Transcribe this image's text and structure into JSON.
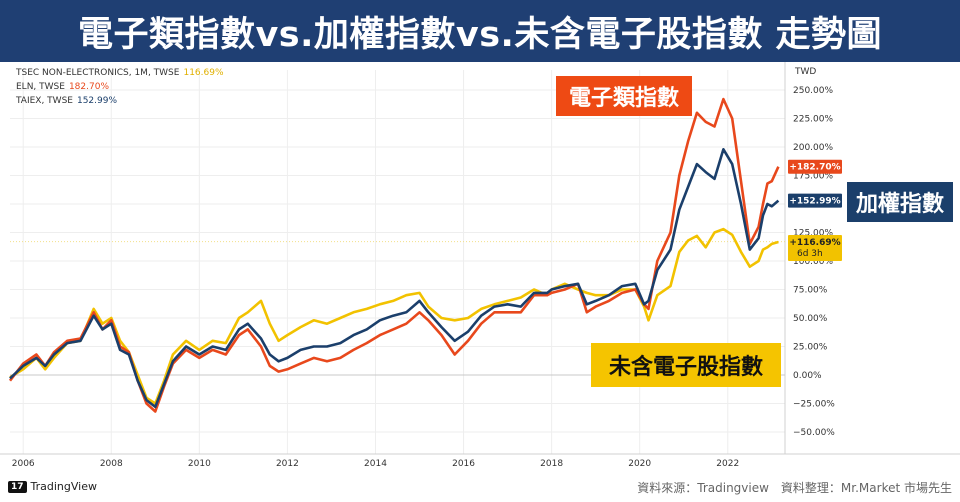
{
  "title": "電子類指數vs.加權指數vs.未含電子股指數 走勢圖",
  "legend": [
    {
      "name": "TSEC NON-ELECTRONICS, 1M, TWSE",
      "value": "116.69%",
      "color": "#f2c200"
    },
    {
      "name": "ELN, TWSE",
      "value": "182.70%",
      "color": "#e8481c"
    },
    {
      "name": "TAIEX, TWSE",
      "value": "152.99%",
      "color": "#1b3f6b"
    }
  ],
  "callouts": {
    "electronics": {
      "text": "電子類指數",
      "color": "#ee4a14"
    },
    "taiex": {
      "text": "加權指數",
      "color": "#1b3f6b"
    },
    "non_electronics": {
      "text": "未含電子股指數",
      "color": "#f5c400"
    }
  },
  "price_tags": {
    "electronics": "+182.70%",
    "taiex": "+152.99%",
    "non_electronics": "+116.69%",
    "non_electronics_sub": "6d 3h"
  },
  "footer": {
    "logo_mark": "17",
    "logo_text": "TradingView",
    "source": "資料來源：Tradingview　資料整理：Mr.Market 市場先生"
  },
  "chart_data": {
    "type": "line",
    "currency": "TWD",
    "x_ticks": [
      "2006",
      "2008",
      "2010",
      "2012",
      "2014",
      "2016",
      "2018",
      "2020",
      "2022"
    ],
    "x_tick_values": [
      2006,
      2008,
      2010,
      2012,
      2014,
      2016,
      2018,
      2020,
      2022
    ],
    "xlim": [
      2005.7,
      2023.3
    ],
    "y_ticks": [
      "250.00%",
      "225.00%",
      "200.00%",
      "175.00%",
      "150.00%",
      "125.00%",
      "100.00%",
      "75.00%",
      "50.00%",
      "25.00%",
      "0.00%",
      "−25.00%",
      "−50.00%"
    ],
    "y_tick_values": [
      250,
      225,
      200,
      175,
      150,
      125,
      100,
      75,
      50,
      25,
      0,
      -25,
      -50
    ],
    "ylim": [
      -55,
      265
    ],
    "series": [
      {
        "name": "ELN",
        "color": "#e8481c",
        "x": [
          2005.7,
          2006.0,
          2006.3,
          2006.5,
          2006.7,
          2007.0,
          2007.3,
          2007.6,
          2007.8,
          2008.0,
          2008.2,
          2008.4,
          2008.6,
          2008.8,
          2009.0,
          2009.2,
          2009.4,
          2009.7,
          2010.0,
          2010.3,
          2010.6,
          2010.9,
          2011.1,
          2011.4,
          2011.6,
          2011.8,
          2012.0,
          2012.3,
          2012.6,
          2012.9,
          2013.2,
          2013.5,
          2013.8,
          2014.1,
          2014.4,
          2014.7,
          2015.0,
          2015.2,
          2015.5,
          2015.8,
          2016.1,
          2016.4,
          2016.7,
          2017.0,
          2017.3,
          2017.6,
          2017.9,
          2018.0,
          2018.3,
          2018.6,
          2018.8,
          2019.0,
          2019.3,
          2019.6,
          2019.9,
          2020.1,
          2020.2,
          2020.4,
          2020.7,
          2020.9,
          2021.1,
          2021.3,
          2021.5,
          2021.7,
          2021.9,
          2022.1,
          2022.3,
          2022.5,
          2022.7,
          2022.8,
          2022.9,
          2023.0,
          2023.15
        ],
        "values": [
          -5,
          10,
          18,
          8,
          20,
          30,
          32,
          55,
          40,
          48,
          25,
          20,
          -5,
          -25,
          -32,
          -10,
          10,
          22,
          15,
          22,
          18,
          35,
          40,
          25,
          8,
          3,
          5,
          10,
          15,
          12,
          15,
          22,
          28,
          35,
          40,
          45,
          55,
          48,
          35,
          18,
          30,
          45,
          55,
          55,
          55,
          70,
          70,
          72,
          75,
          80,
          55,
          60,
          65,
          72,
          75,
          62,
          58,
          100,
          125,
          175,
          205,
          230,
          222,
          218,
          242,
          225,
          170,
          115,
          130,
          150,
          168,
          170,
          182.7
        ]
      },
      {
        "name": "TAIEX",
        "color": "#1b3f6b",
        "x": [
          2005.7,
          2006.0,
          2006.3,
          2006.5,
          2006.7,
          2007.0,
          2007.3,
          2007.6,
          2007.8,
          2008.0,
          2008.2,
          2008.4,
          2008.6,
          2008.8,
          2009.0,
          2009.2,
          2009.4,
          2009.7,
          2010.0,
          2010.3,
          2010.6,
          2010.9,
          2011.1,
          2011.4,
          2011.6,
          2011.8,
          2012.0,
          2012.3,
          2012.6,
          2012.9,
          2013.2,
          2013.5,
          2013.8,
          2014.1,
          2014.4,
          2014.7,
          2015.0,
          2015.2,
          2015.5,
          2015.8,
          2016.1,
          2016.4,
          2016.7,
          2017.0,
          2017.3,
          2017.6,
          2017.9,
          2018.0,
          2018.3,
          2018.6,
          2018.8,
          2019.0,
          2019.3,
          2019.6,
          2019.9,
          2020.1,
          2020.2,
          2020.4,
          2020.7,
          2020.9,
          2021.1,
          2021.3,
          2021.5,
          2021.7,
          2021.9,
          2022.1,
          2022.3,
          2022.5,
          2022.7,
          2022.8,
          2022.9,
          2023.0,
          2023.15
        ],
        "values": [
          -3,
          8,
          15,
          8,
          18,
          28,
          30,
          52,
          40,
          45,
          22,
          18,
          -5,
          -22,
          -28,
          -8,
          12,
          25,
          18,
          25,
          22,
          40,
          45,
          32,
          18,
          12,
          15,
          22,
          25,
          25,
          28,
          35,
          40,
          48,
          52,
          55,
          65,
          55,
          42,
          30,
          38,
          52,
          60,
          62,
          60,
          72,
          72,
          75,
          78,
          80,
          62,
          65,
          70,
          78,
          80,
          62,
          65,
          92,
          110,
          145,
          165,
          185,
          178,
          172,
          198,
          185,
          150,
          110,
          120,
          140,
          150,
          148,
          153
        ]
      },
      {
        "name": "TSEC NON-ELECTRONICS",
        "color": "#f2c200",
        "x": [
          2005.7,
          2006.0,
          2006.3,
          2006.5,
          2006.7,
          2007.0,
          2007.3,
          2007.6,
          2007.8,
          2008.0,
          2008.2,
          2008.4,
          2008.6,
          2008.8,
          2009.0,
          2009.2,
          2009.4,
          2009.7,
          2010.0,
          2010.3,
          2010.6,
          2010.9,
          2011.1,
          2011.4,
          2011.6,
          2011.8,
          2012.0,
          2012.3,
          2012.6,
          2012.9,
          2013.2,
          2013.5,
          2013.8,
          2014.1,
          2014.4,
          2014.7,
          2015.0,
          2015.2,
          2015.5,
          2015.8,
          2016.1,
          2016.4,
          2016.7,
          2017.0,
          2017.3,
          2017.6,
          2017.9,
          2018.0,
          2018.3,
          2018.6,
          2018.8,
          2019.0,
          2019.3,
          2019.6,
          2019.9,
          2020.1,
          2020.2,
          2020.4,
          2020.7,
          2020.9,
          2021.1,
          2021.3,
          2021.5,
          2021.7,
          2021.9,
          2022.1,
          2022.3,
          2022.5,
          2022.7,
          2022.8,
          2022.9,
          2023.0,
          2023.15
        ],
        "values": [
          -2,
          5,
          15,
          5,
          15,
          28,
          30,
          58,
          45,
          50,
          30,
          20,
          0,
          -20,
          -25,
          -5,
          18,
          30,
          22,
          30,
          28,
          50,
          55,
          65,
          45,
          30,
          35,
          42,
          48,
          45,
          50,
          55,
          58,
          62,
          65,
          70,
          72,
          60,
          50,
          48,
          50,
          58,
          62,
          65,
          68,
          75,
          70,
          75,
          80,
          75,
          72,
          70,
          70,
          75,
          75,
          60,
          48,
          70,
          78,
          108,
          118,
          122,
          112,
          125,
          128,
          123,
          108,
          95,
          100,
          110,
          112,
          115,
          116.7
        ]
      }
    ]
  }
}
